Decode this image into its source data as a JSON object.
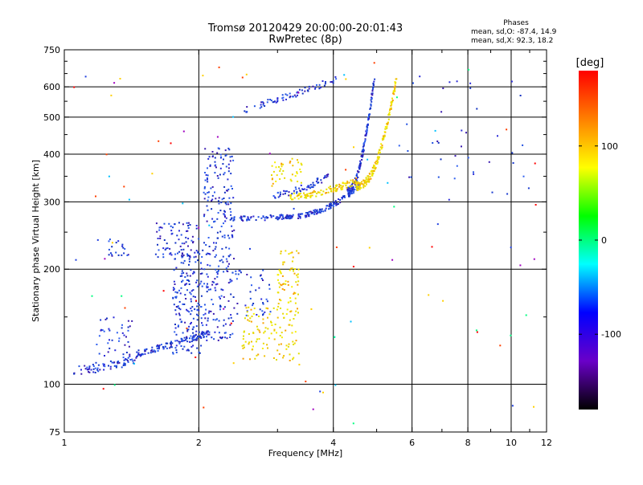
{
  "chart_data": {
    "type": "scatter",
    "title": "Tromsø 20120429 20:00:00-20:01:43",
    "subtitle": "RwPretec (8p)",
    "xlabel": "Frequency [MHz]",
    "ylabel": "Stationary phase Virtual Height [km]",
    "x_scale": "log",
    "y_scale": "log",
    "xlim": [
      1,
      12
    ],
    "ylim": [
      75,
      750
    ],
    "x_ticks": [
      1,
      2,
      4,
      6,
      8,
      10,
      12
    ],
    "x_minor_ticks": [
      3,
      5,
      7,
      9,
      11
    ],
    "y_ticks": [
      75,
      100,
      200,
      300,
      400,
      500,
      600,
      750
    ],
    "y_minor_ticks": [
      150,
      250,
      350,
      450,
      550,
      650,
      700
    ],
    "grid": true,
    "phases_box": {
      "title": "Phases",
      "line_o": "mean, sd,O: -87.4, 14.9",
      "line_x": "mean, sd,X:  92.3, 18.2"
    },
    "colorbar": {
      "label": "[deg]",
      "range": [
        -180,
        180
      ],
      "ticks": [
        100,
        0,
        -100
      ],
      "colors": [
        "#000000",
        "#6a00c8",
        "#0000ff",
        "#00ffff",
        "#00ff00",
        "#ffff00",
        "#ff8000",
        "#ff0000"
      ]
    },
    "o_mode_color": "#2050e0",
    "x_mode_color": "#f0e000"
  }
}
